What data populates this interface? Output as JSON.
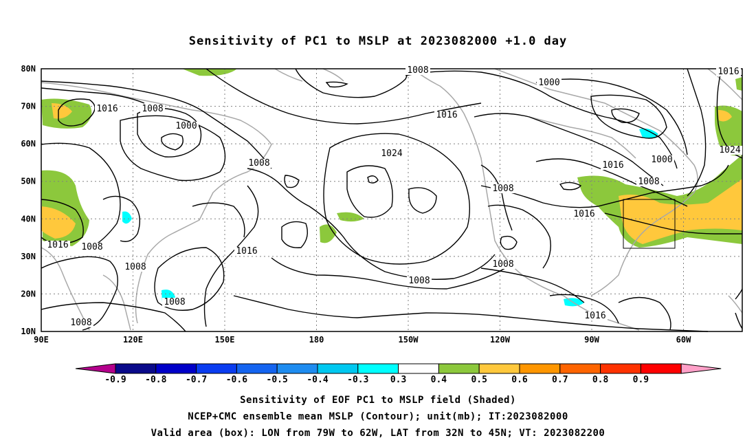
{
  "title": "Sensitivity of PC1 to MSLP at 2023082000 +1.0 day",
  "lat_labels": [
    "80N",
    "70N",
    "60N",
    "50N",
    "40N",
    "30N",
    "20N",
    "10N"
  ],
  "lon_labels": [
    "90E",
    "120E",
    "150E",
    "180",
    "150W",
    "120W",
    "90W",
    "60W"
  ],
  "contour_labels": [
    "1008",
    "1016",
    "1016",
    "1008",
    "1000",
    "1008",
    "1016",
    "1024",
    "1000",
    "1016",
    "1000",
    "1008",
    "1024",
    "1008",
    "1016",
    "1016",
    "1008",
    "1016",
    "1008",
    "1008",
    "1008",
    "1008",
    "1016",
    "1008"
  ],
  "colorbar": {
    "ticks": [
      "-0.9",
      "-0.8",
      "-0.7",
      "-0.6",
      "-0.5",
      "-0.4",
      "-0.3",
      "0.3",
      "0.4",
      "0.5",
      "0.6",
      "0.7",
      "0.8",
      "0.9"
    ],
    "colors": [
      "#0a0a8a",
      "#0000c8",
      "#0a3cf0",
      "#1464f0",
      "#1e8cf0",
      "#00c8f0",
      "#00ffff",
      "#ffffff",
      "#8cc83c",
      "#ffc83c",
      "#ff9600",
      "#ff6400",
      "#ff3200",
      "#ff0000"
    ],
    "left_end_color": "#b4008c",
    "right_end_color": "#ffa0c8"
  },
  "captions": [
    "Sensitivity of EOF PC1 to MSLP field (Shaded)",
    "NCEP+CMC ensemble mean MSLP (Contour); unit(mb); IT:2023082000",
    "Valid area (box): LON from 79W to 62W, LAT from 32N to 45N; VT: 2023082200"
  ]
}
